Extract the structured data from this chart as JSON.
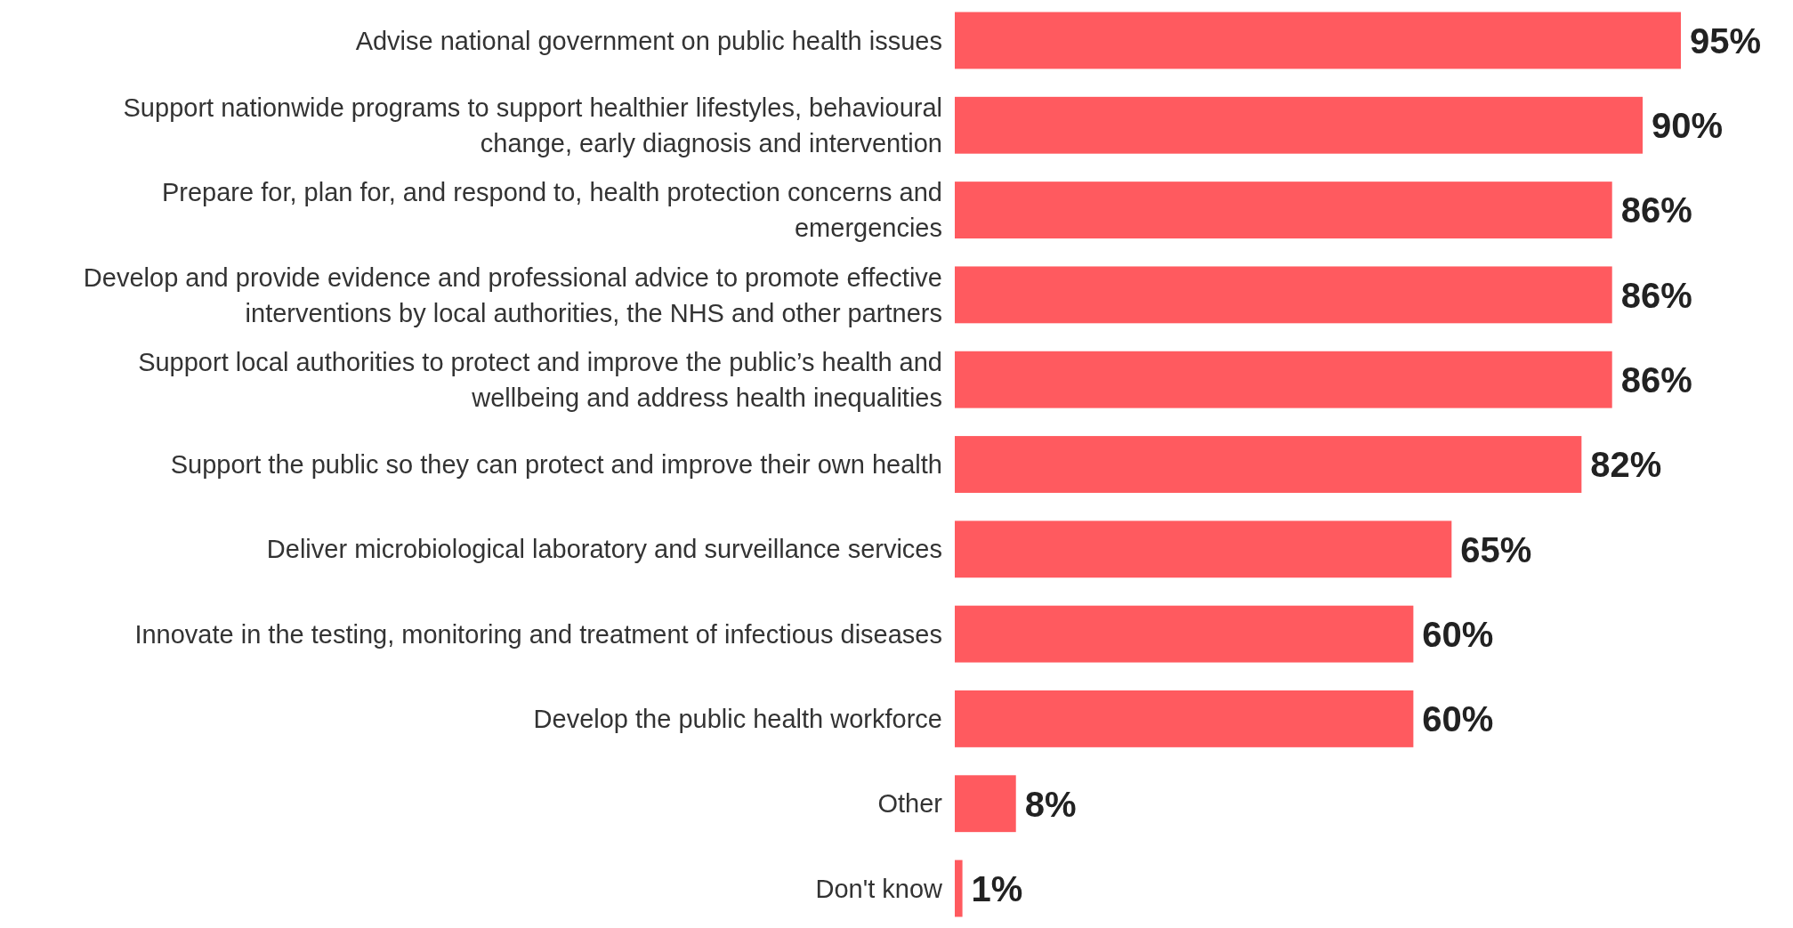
{
  "chart_data": {
    "type": "bar",
    "orientation": "horizontal",
    "categories": [
      "Advise national government on public health issues",
      "Support nationwide programs to support healthier lifestyles, behavioural change, early diagnosis and intervention",
      "Prepare for, plan for, and respond to, health protection concerns and emergencies",
      "Develop and provide evidence and professional advice to promote effective interventions by local authorities, the NHS and other partners",
      "Support local authorities to protect and improve the public’s health and wellbeing and address health inequalities",
      "Support the public so they can protect and improve their own health",
      "Deliver microbiological laboratory and surveillance services",
      "Innovate in the testing, monitoring and treatment of infectious diseases",
      "Develop the public health workforce",
      "Other",
      "Don't know"
    ],
    "value_labels": [
      "95%",
      "90%",
      "86%",
      "86%",
      "86%",
      "82%",
      "65%",
      "60%",
      "60%",
      "8%",
      "1%"
    ],
    "values": [
      95,
      90,
      86,
      86,
      86,
      82,
      65,
      60,
      60,
      8,
      1
    ],
    "color": "#ff5a5f"
  }
}
